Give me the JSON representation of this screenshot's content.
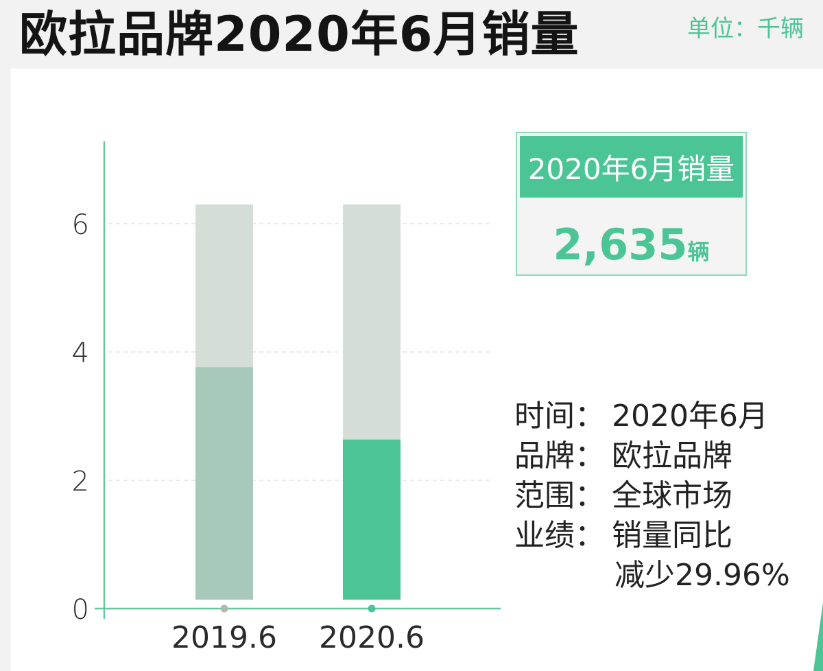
{
  "header": {
    "title": "欧拉品牌2020年6月销量",
    "unit_label": "单位：千辆"
  },
  "kpi": {
    "label": "2020年6月销量",
    "value": "2,635",
    "unit": "辆"
  },
  "info": {
    "rows": [
      {
        "key": "时间：",
        "value": "2020年6月"
      },
      {
        "key": "品牌：",
        "value": "欧拉品牌"
      },
      {
        "key": "范围：",
        "value": "全球市场"
      },
      {
        "key": "业绩：",
        "value": "销量同比"
      }
    ],
    "continuation": "减少29.96%"
  },
  "colors": {
    "accent": "#4cc596",
    "bar_2019": "#a6c9ba",
    "bar_2020": "#4cc596",
    "bar_background": "#d5ded6",
    "axis": "#67c69c",
    "grid": "#e2e2e2"
  },
  "chart_data": {
    "type": "bar",
    "categories": [
      "2019.6",
      "2020.6"
    ],
    "values": [
      3.762,
      2.635
    ],
    "background_max": 6.3,
    "yticks": [
      0,
      2,
      4,
      6
    ],
    "ylim": [
      0,
      7.2
    ],
    "grid": true,
    "title": "",
    "xlabel": "",
    "ylabel": ""
  }
}
